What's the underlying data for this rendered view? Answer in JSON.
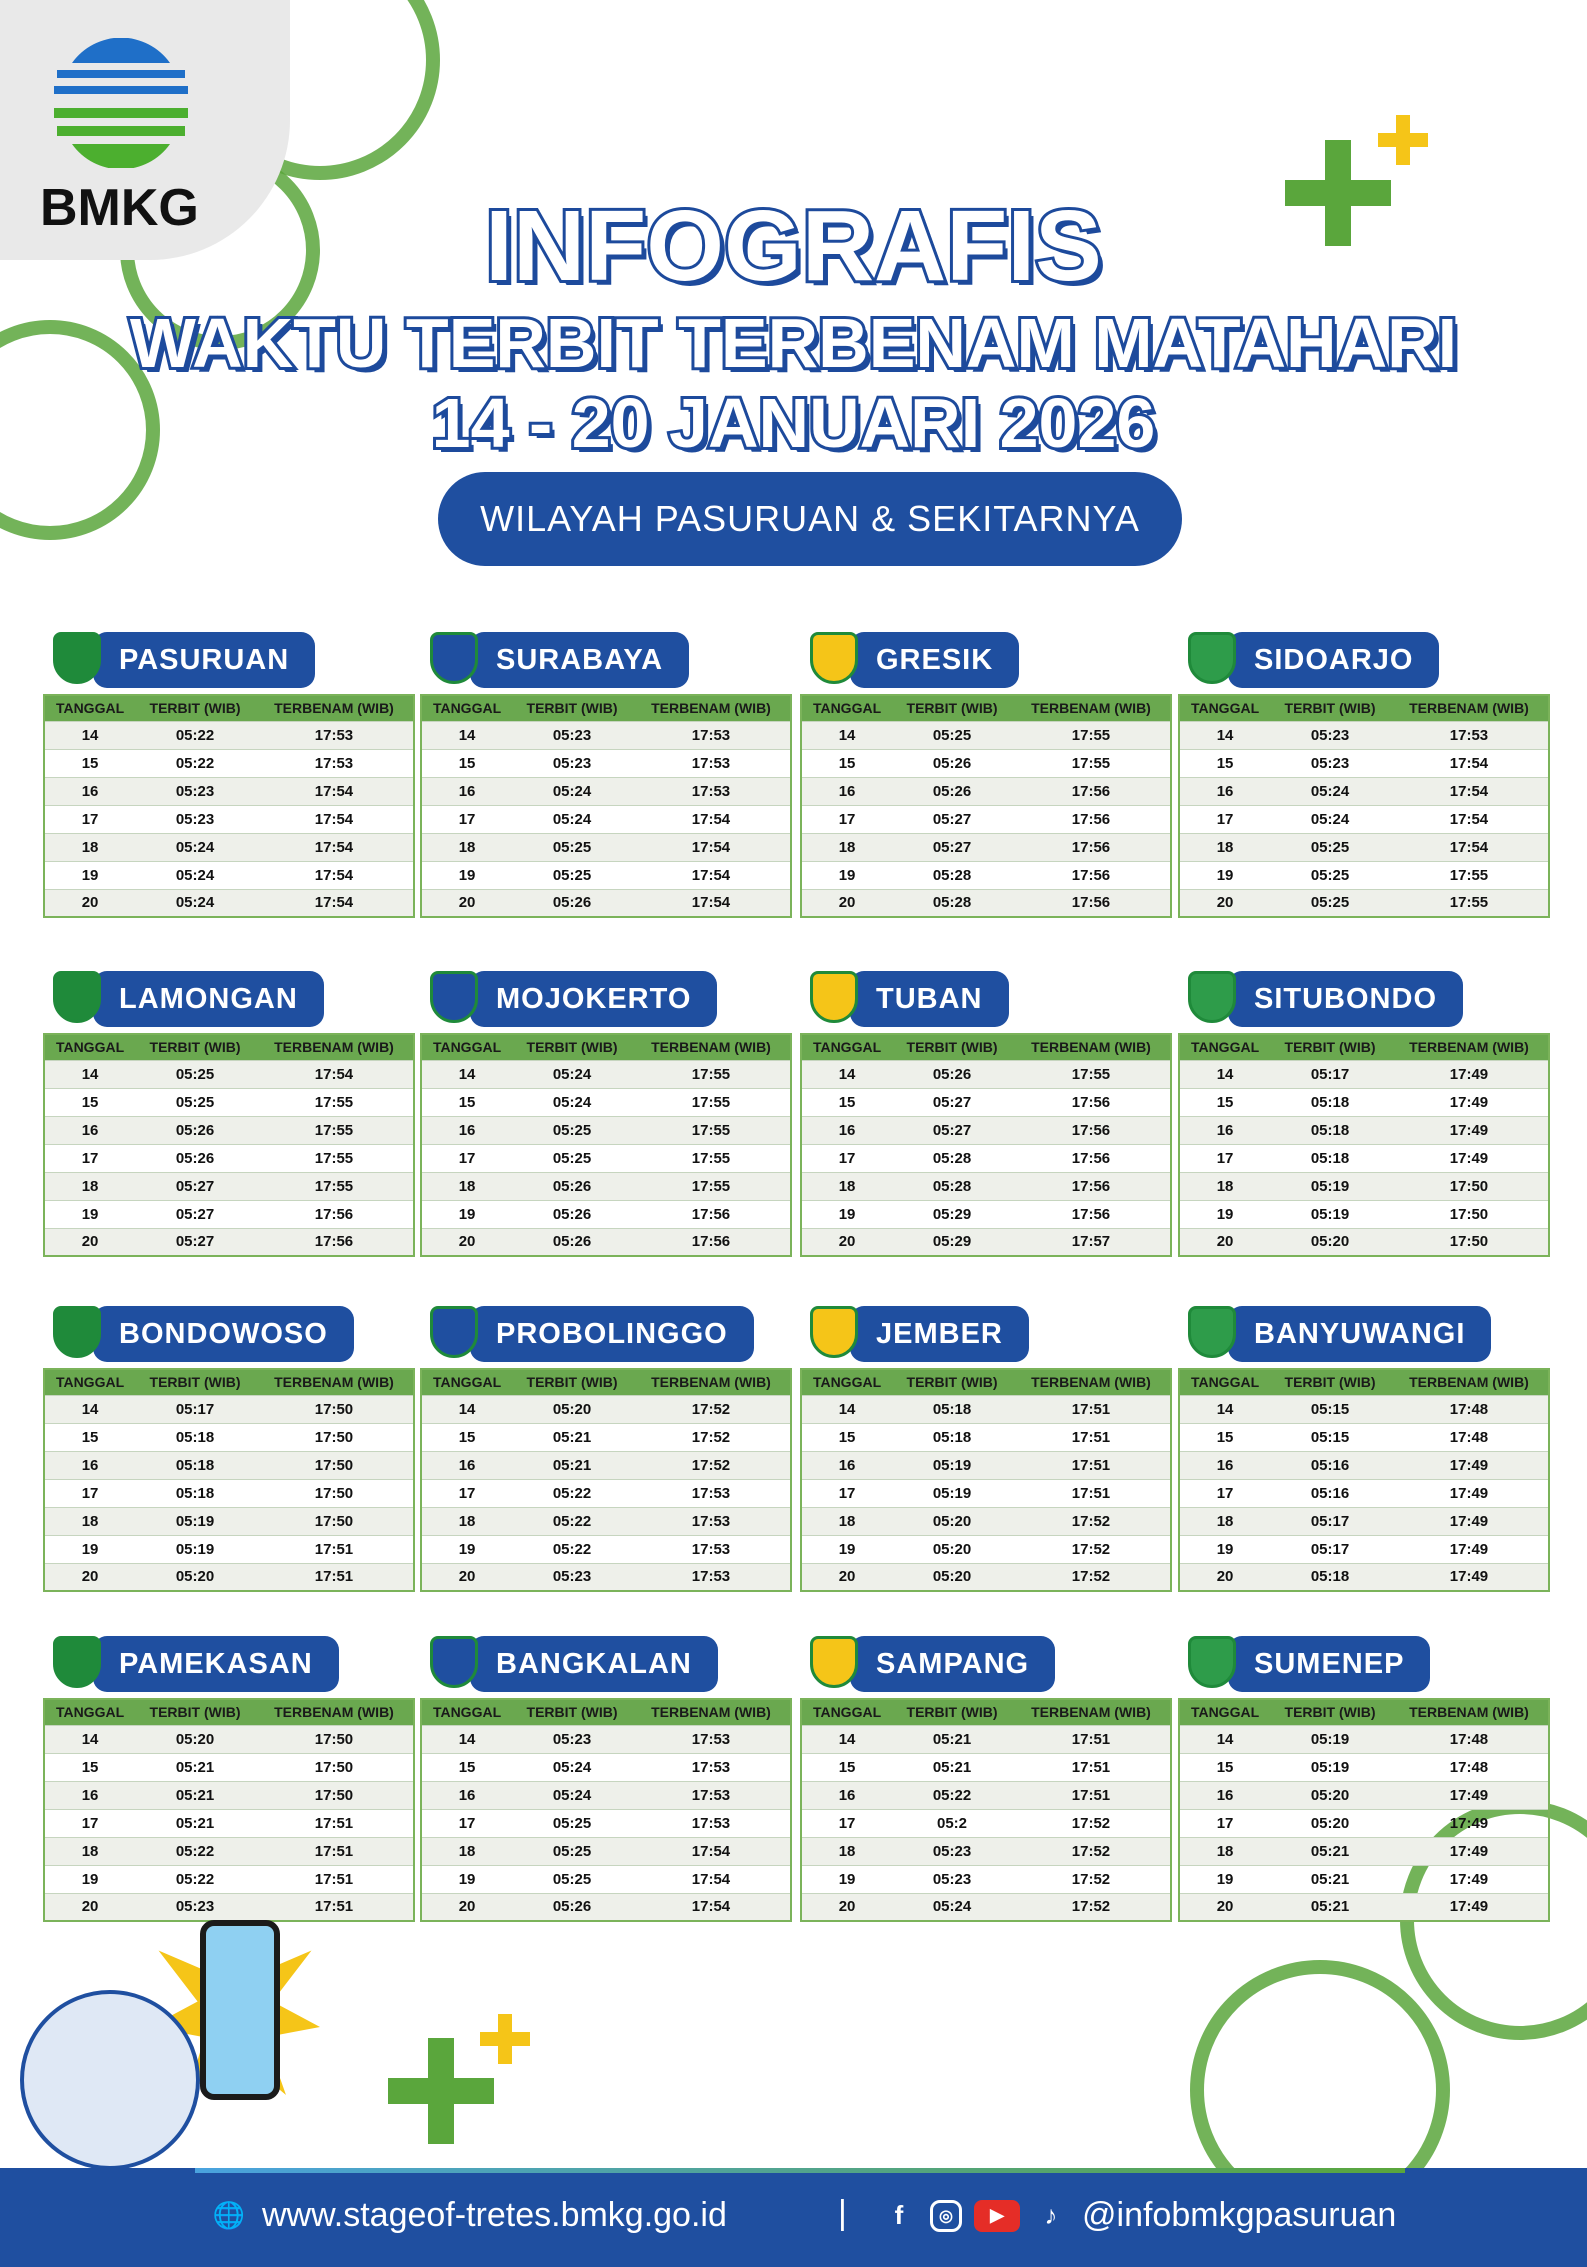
{
  "logo": {
    "text": "BMKG"
  },
  "title": {
    "line1": "INFOGRAFIS",
    "line2": "WAKTU TERBIT TERBENAM MATAHARI",
    "line3": "14 - 20 JANUARI  2026"
  },
  "region": "WILAYAH PASURUAN & SEKITARNYA",
  "columns": [
    "TANGGAL",
    "TERBIT (WIB)",
    "TERBENAM (WIB)"
  ],
  "dates": [
    "14",
    "15",
    "16",
    "17",
    "18",
    "19",
    "20"
  ],
  "colors": {
    "blue": "#1f4fa0",
    "green": "#6aa84f",
    "yellow": "#f5c518"
  },
  "cities": [
    {
      "name": "PASURUAN",
      "terbit": [
        "05:22",
        "05:22",
        "05:23",
        "05:23",
        "05:24",
        "05:24",
        "05:24"
      ],
      "terbenam": [
        "17:53",
        "17:53",
        "17:54",
        "17:54",
        "17:54",
        "17:54",
        "17:54"
      ]
    },
    {
      "name": "SURABAYA",
      "terbit": [
        "05:23",
        "05:23",
        "05:24",
        "05:24",
        "05:25",
        "05:25",
        "05:26"
      ],
      "terbenam": [
        "17:53",
        "17:53",
        "17:53",
        "17:54",
        "17:54",
        "17:54",
        "17:54"
      ]
    },
    {
      "name": "GRESIK",
      "terbit": [
        "05:25",
        "05:26",
        "05:26",
        "05:27",
        "05:27",
        "05:28",
        "05:28"
      ],
      "terbenam": [
        "17:55",
        "17:55",
        "17:56",
        "17:56",
        "17:56",
        "17:56",
        "17:56"
      ]
    },
    {
      "name": "SIDOARJO",
      "terbit": [
        "05:23",
        "05:23",
        "05:24",
        "05:24",
        "05:25",
        "05:25",
        "05:25"
      ],
      "terbenam": [
        "17:53",
        "17:54",
        "17:54",
        "17:54",
        "17:54",
        "17:55",
        "17:55"
      ]
    },
    {
      "name": "LAMONGAN",
      "terbit": [
        "05:25",
        "05:25",
        "05:26",
        "05:26",
        "05:27",
        "05:27",
        "05:27"
      ],
      "terbenam": [
        "17:54",
        "17:55",
        "17:55",
        "17:55",
        "17:55",
        "17:56",
        "17:56"
      ]
    },
    {
      "name": "MOJOKERTO",
      "terbit": [
        "05:24",
        "05:24",
        "05:25",
        "05:25",
        "05:26",
        "05:26",
        "05:26"
      ],
      "terbenam": [
        "17:55",
        "17:55",
        "17:55",
        "17:55",
        "17:55",
        "17:56",
        "17:56"
      ]
    },
    {
      "name": "TUBAN",
      "terbit": [
        "05:26",
        "05:27",
        "05:27",
        "05:28",
        "05:28",
        "05:29",
        "05:29"
      ],
      "terbenam": [
        "17:55",
        "17:56",
        "17:56",
        "17:56",
        "17:56",
        "17:56",
        "17:57"
      ]
    },
    {
      "name": "SITUBONDO",
      "terbit": [
        "05:17",
        "05:18",
        "05:18",
        "05:18",
        "05:19",
        "05:19",
        "05:20"
      ],
      "terbenam": [
        "17:49",
        "17:49",
        "17:49",
        "17:49",
        "17:50",
        "17:50",
        "17:50"
      ]
    },
    {
      "name": "BONDOWOSO",
      "terbit": [
        "05:17",
        "05:18",
        "05:18",
        "05:18",
        "05:19",
        "05:19",
        "05:20"
      ],
      "terbenam": [
        "17:50",
        "17:50",
        "17:50",
        "17:50",
        "17:50",
        "17:51",
        "17:51"
      ]
    },
    {
      "name": "PROBOLINGGO",
      "terbit": [
        "05:20",
        "05:21",
        "05:21",
        "05:22",
        "05:22",
        "05:22",
        "05:23"
      ],
      "terbenam": [
        "17:52",
        "17:52",
        "17:52",
        "17:53",
        "17:53",
        "17:53",
        "17:53"
      ]
    },
    {
      "name": "JEMBER",
      "terbit": [
        "05:18",
        "05:18",
        "05:19",
        "05:19",
        "05:20",
        "05:20",
        "05:20"
      ],
      "terbenam": [
        "17:51",
        "17:51",
        "17:51",
        "17:51",
        "17:52",
        "17:52",
        "17:52"
      ]
    },
    {
      "name": "BANYUWANGI",
      "terbit": [
        "05:15",
        "05:15",
        "05:16",
        "05:16",
        "05:17",
        "05:17",
        "05:18"
      ],
      "terbenam": [
        "17:48",
        "17:48",
        "17:49",
        "17:49",
        "17:49",
        "17:49",
        "17:49"
      ]
    },
    {
      "name": "PAMEKASAN",
      "terbit": [
        "05:20",
        "05:21",
        "05:21",
        "05:21",
        "05:22",
        "05:22",
        "05:23"
      ],
      "terbenam": [
        "17:50",
        "17:50",
        "17:50",
        "17:51",
        "17:51",
        "17:51",
        "17:51"
      ]
    },
    {
      "name": "BANGKALAN",
      "terbit": [
        "05:23",
        "05:24",
        "05:24",
        "05:25",
        "05:25",
        "05:25",
        "05:26"
      ],
      "terbenam": [
        "17:53",
        "17:53",
        "17:53",
        "17:53",
        "17:54",
        "17:54",
        "17:54"
      ]
    },
    {
      "name": "SAMPANG",
      "terbit": [
        "05:21",
        "05:21",
        "05:22",
        "05:2",
        "05:23",
        "05:23",
        "05:24"
      ],
      "terbenam": [
        "17:51",
        "17:51",
        "17:51",
        "17:52",
        "17:52",
        "17:52",
        "17:52"
      ]
    },
    {
      "name": "SUMENEP",
      "terbit": [
        "05:19",
        "05:19",
        "05:20",
        "05:20",
        "05:21",
        "05:21",
        "05:21"
      ],
      "terbenam": [
        "17:48",
        "17:48",
        "17:49",
        "17:49",
        "17:49",
        "17:49",
        "17:49"
      ]
    }
  ],
  "footer": {
    "website": "www.stageof-tretes.bmkg.go.id",
    "separator": "|",
    "social_handle": "@infobmkgpasuruan",
    "icons": [
      "globe-icon",
      "facebook-icon",
      "instagram-icon",
      "youtube-icon",
      "tiktok-icon"
    ]
  }
}
